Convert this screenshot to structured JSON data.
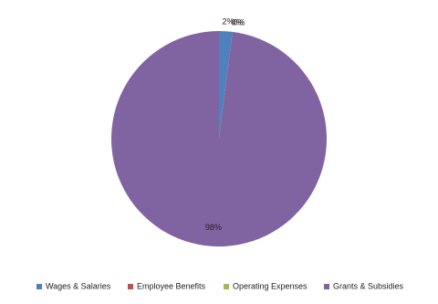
{
  "chart_data": {
    "type": "pie",
    "categories": [
      "Wages & Salaries",
      "Employee Benefits",
      "Operating Expenses",
      "Grants & Subsidies"
    ],
    "values": [
      2,
      0,
      0,
      98
    ],
    "value_labels": [
      "2%",
      "0%",
      "0%",
      "98%"
    ],
    "colors": [
      "#4f81bd",
      "#c0504d",
      "#9bbb59",
      "#8064a2"
    ],
    "legend": "bottom"
  }
}
